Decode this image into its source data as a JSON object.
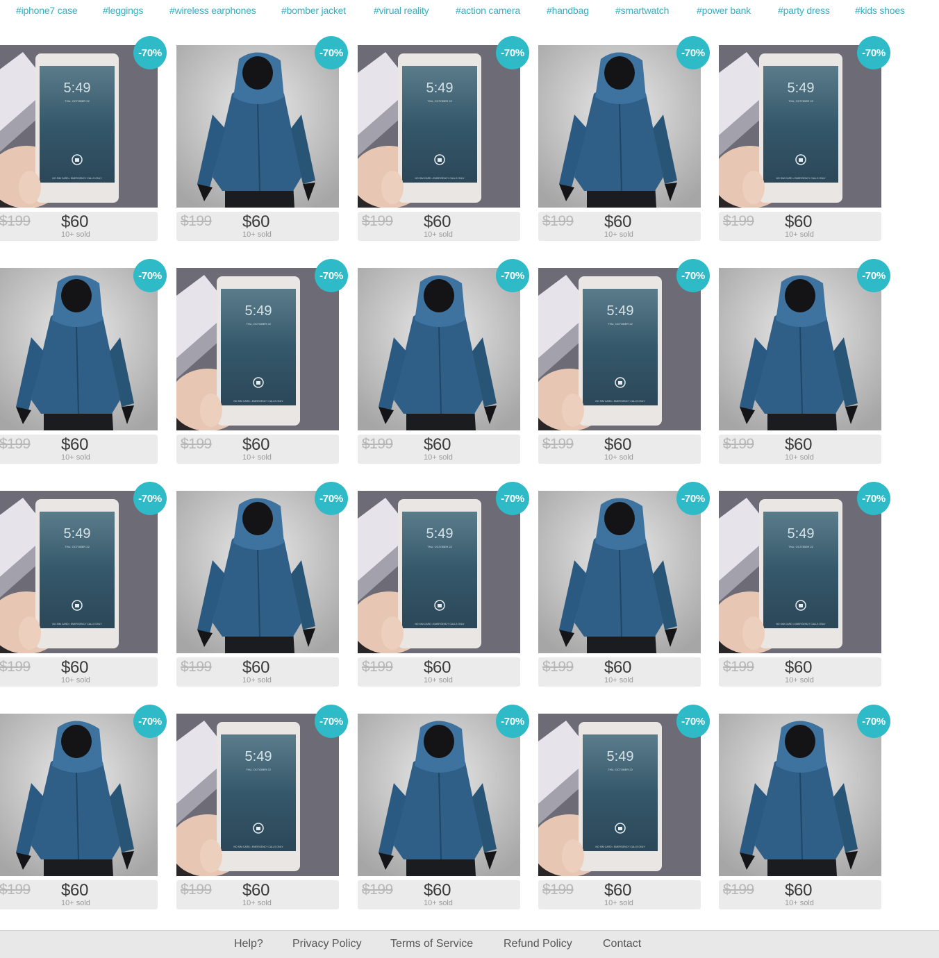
{
  "tags": [
    {
      "label": "#iphone7 case"
    },
    {
      "label": "#leggings"
    },
    {
      "label": "#wireless earphones"
    },
    {
      "label": "#bomber jacket"
    },
    {
      "label": "#virual reality"
    },
    {
      "label": "#action camera"
    },
    {
      "label": "#handbag"
    },
    {
      "label": "#smartwatch"
    },
    {
      "label": "#power bank"
    },
    {
      "label": "#party dress"
    },
    {
      "label": "#kids shoes"
    }
  ],
  "phone_screen": {
    "time": "5:49",
    "date": "THU, OCTOBER 22",
    "footer": "NO SIM CARD • EMERGENCY CALLS ONLY"
  },
  "colors": {
    "accent": "#2fbac8",
    "tag_text": "#2fb3c4",
    "price_bar": "#ebebeb"
  },
  "products": [
    {
      "image": "phone-photo",
      "discount": "-70%",
      "old_price": "$199",
      "price": "$60",
      "sold": "10+ sold"
    },
    {
      "image": "hoodie-photo",
      "discount": "-70%",
      "old_price": "$199",
      "price": "$60",
      "sold": "10+ sold"
    },
    {
      "image": "phone-photo",
      "discount": "-70%",
      "old_price": "$199",
      "price": "$60",
      "sold": "10+ sold"
    },
    {
      "image": "hoodie-photo",
      "discount": "-70%",
      "old_price": "$199",
      "price": "$60",
      "sold": "10+ sold"
    },
    {
      "image": "phone-photo",
      "discount": "-70%",
      "old_price": "$199",
      "price": "$60",
      "sold": "10+ sold"
    },
    {
      "image": "hoodie-photo",
      "discount": "-70%",
      "old_price": "$199",
      "price": "$60",
      "sold": "10+ sold"
    },
    {
      "image": "phone-photo",
      "discount": "-70%",
      "old_price": "$199",
      "price": "$60",
      "sold": "10+ sold"
    },
    {
      "image": "hoodie-photo",
      "discount": "-70%",
      "old_price": "$199",
      "price": "$60",
      "sold": "10+ sold"
    },
    {
      "image": "phone-photo",
      "discount": "-70%",
      "old_price": "$199",
      "price": "$60",
      "sold": "10+ sold"
    },
    {
      "image": "hoodie-photo",
      "discount": "-70%",
      "old_price": "$199",
      "price": "$60",
      "sold": "10+ sold"
    },
    {
      "image": "phone-photo",
      "discount": "-70%",
      "old_price": "$199",
      "price": "$60",
      "sold": "10+ sold"
    },
    {
      "image": "hoodie-photo",
      "discount": "-70%",
      "old_price": "$199",
      "price": "$60",
      "sold": "10+ sold"
    },
    {
      "image": "phone-photo",
      "discount": "-70%",
      "old_price": "$199",
      "price": "$60",
      "sold": "10+ sold"
    },
    {
      "image": "hoodie-photo",
      "discount": "-70%",
      "old_price": "$199",
      "price": "$60",
      "sold": "10+ sold"
    },
    {
      "image": "phone-photo",
      "discount": "-70%",
      "old_price": "$199",
      "price": "$60",
      "sold": "10+ sold"
    },
    {
      "image": "hoodie-photo",
      "discount": "-70%",
      "old_price": "$199",
      "price": "$60",
      "sold": "10+ sold"
    },
    {
      "image": "phone-photo",
      "discount": "-70%",
      "old_price": "$199",
      "price": "$60",
      "sold": "10+ sold"
    },
    {
      "image": "hoodie-photo",
      "discount": "-70%",
      "old_price": "$199",
      "price": "$60",
      "sold": "10+ sold"
    },
    {
      "image": "phone-photo",
      "discount": "-70%",
      "old_price": "$199",
      "price": "$60",
      "sold": "10+ sold"
    },
    {
      "image": "hoodie-photo",
      "discount": "-70%",
      "old_price": "$199",
      "price": "$60",
      "sold": "10+ sold"
    }
  ],
  "footer": {
    "links": [
      {
        "label": "Help?"
      },
      {
        "label": "Privacy Policy"
      },
      {
        "label": "Terms of Service"
      },
      {
        "label": "Refund Policy"
      },
      {
        "label": "Contact"
      }
    ]
  }
}
